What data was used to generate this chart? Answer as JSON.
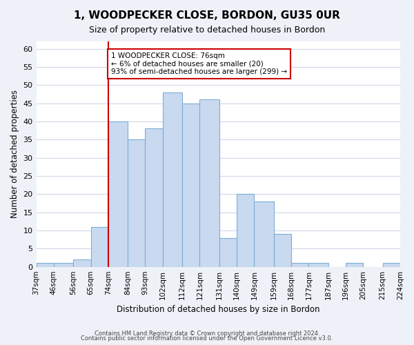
{
  "title": "1, WOODPECKER CLOSE, BORDON, GU35 0UR",
  "subtitle": "Size of property relative to detached houses in Bordon",
  "xlabel": "Distribution of detached houses by size in Bordon",
  "ylabel": "Number of detached properties",
  "bin_edges": [
    37,
    46,
    56,
    65,
    74,
    84,
    93,
    102,
    112,
    121,
    131,
    140,
    149,
    159,
    168,
    177,
    187,
    196,
    205,
    215,
    224
  ],
  "bin_labels": [
    "37sqm",
    "46sqm",
    "56sqm",
    "65sqm",
    "74sqm",
    "84sqm",
    "93sqm",
    "102sqm",
    "112sqm",
    "121sqm",
    "131sqm",
    "140sqm",
    "149sqm",
    "159sqm",
    "168sqm",
    "177sqm",
    "187sqm",
    "196sqm",
    "205sqm",
    "215sqm",
    "224sqm"
  ],
  "values": [
    1,
    1,
    2,
    11,
    40,
    35,
    38,
    48,
    45,
    46,
    8,
    20,
    18,
    9,
    1,
    1,
    0,
    1,
    0,
    1
  ],
  "bar_color": "#c9d9f0",
  "bar_edge_color": "#7bafd4",
  "marker_bin_index": 4,
  "marker_line_color": "#cc0000",
  "annotation_text": "1 WOODPECKER CLOSE: 76sqm\n← 6% of detached houses are smaller (20)\n93% of semi-detached houses are larger (299) →",
  "annotation_box_color": "#ffffff",
  "annotation_box_edge": "#cc0000",
  "ylim": [
    0,
    62
  ],
  "yticks": [
    0,
    5,
    10,
    15,
    20,
    25,
    30,
    35,
    40,
    45,
    50,
    55,
    60
  ],
  "footer1": "Contains HM Land Registry data © Crown copyright and database right 2024.",
  "footer2": "Contains public sector information licensed under the Open Government Licence v3.0.",
  "bg_color": "#eef2f8",
  "plot_bg_color": "#ffffff",
  "grid_color": "#d0d8e8"
}
